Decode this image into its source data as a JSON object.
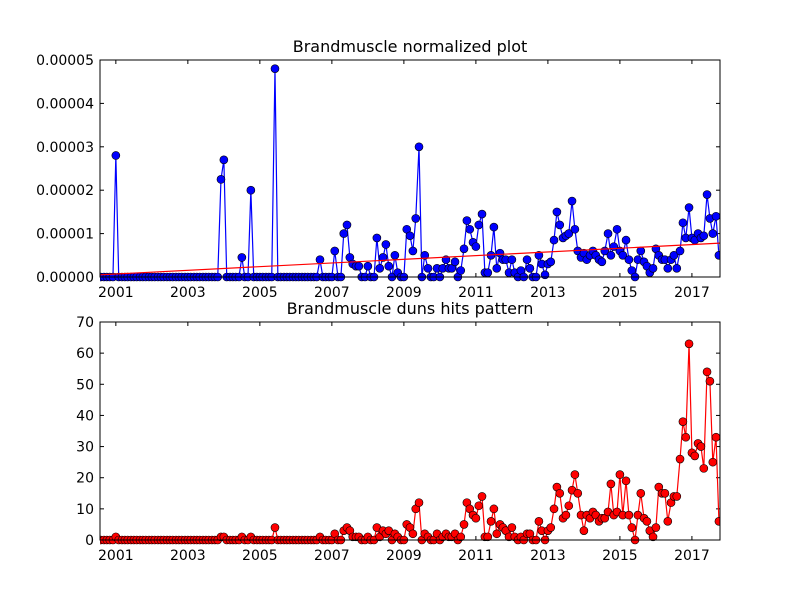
{
  "chart_data": [
    {
      "type": "line",
      "title": "Brandmuscle normalized plot",
      "xlim": [
        2000.56,
        2017.78
      ],
      "xticks": [
        2001,
        2003,
        2005,
        2007,
        2009,
        2011,
        2013,
        2015,
        2017
      ],
      "ylim": [
        0,
        5e-05
      ],
      "yticks": [
        {
          "value": 0,
          "label": "0.00000"
        },
        {
          "value": 1e-05,
          "label": "0.00001"
        },
        {
          "value": 2e-05,
          "label": "0.00002"
        },
        {
          "value": 3e-05,
          "label": "0.00003"
        },
        {
          "value": 4e-05,
          "label": "0.00004"
        },
        {
          "value": 5e-05,
          "label": "0.00005"
        }
      ],
      "x": [
        2000.58,
        2000.67,
        2000.75,
        2000.83,
        2000.92,
        2001.0,
        2001.08,
        2001.17,
        2001.25,
        2001.33,
        2001.42,
        2001.5,
        2001.58,
        2001.67,
        2001.75,
        2001.83,
        2001.92,
        2002.0,
        2002.08,
        2002.17,
        2002.25,
        2002.33,
        2002.42,
        2002.5,
        2002.58,
        2002.67,
        2002.75,
        2002.83,
        2002.92,
        2003.0,
        2003.08,
        2003.17,
        2003.25,
        2003.33,
        2003.42,
        2003.5,
        2003.58,
        2003.67,
        2003.75,
        2003.83,
        2003.92,
        2004.0,
        2004.08,
        2004.17,
        2004.25,
        2004.33,
        2004.42,
        2004.5,
        2004.58,
        2004.67,
        2004.75,
        2004.83,
        2004.92,
        2005.0,
        2005.08,
        2005.17,
        2005.25,
        2005.33,
        2005.42,
        2005.5,
        2005.58,
        2005.67,
        2005.75,
        2005.83,
        2005.92,
        2006.0,
        2006.08,
        2006.17,
        2006.25,
        2006.33,
        2006.42,
        2006.5,
        2006.58,
        2006.67,
        2006.75,
        2006.83,
        2006.92,
        2007.0,
        2007.08,
        2007.17,
        2007.25,
        2007.33,
        2007.42,
        2007.5,
        2007.58,
        2007.67,
        2007.75,
        2007.83,
        2007.92,
        2008.0,
        2008.08,
        2008.17,
        2008.25,
        2008.33,
        2008.42,
        2008.5,
        2008.58,
        2008.67,
        2008.75,
        2008.83,
        2008.92,
        2009.0,
        2009.08,
        2009.17,
        2009.25,
        2009.33,
        2009.42,
        2009.5,
        2009.58,
        2009.67,
        2009.75,
        2009.83,
        2009.92,
        2010.0,
        2010.08,
        2010.17,
        2010.25,
        2010.33,
        2010.42,
        2010.5,
        2010.58,
        2010.67,
        2010.75,
        2010.83,
        2010.92,
        2011.0,
        2011.08,
        2011.17,
        2011.25,
        2011.33,
        2011.42,
        2011.5,
        2011.58,
        2011.67,
        2011.75,
        2011.83,
        2011.92,
        2012.0,
        2012.08,
        2012.17,
        2012.25,
        2012.33,
        2012.42,
        2012.5,
        2012.58,
        2012.67,
        2012.75,
        2012.83,
        2012.92,
        2013.0,
        2013.08,
        2013.17,
        2013.25,
        2013.33,
        2013.42,
        2013.5,
        2013.58,
        2013.67,
        2013.75,
        2013.83,
        2013.92,
        2014.0,
        2014.08,
        2014.17,
        2014.25,
        2014.33,
        2014.42,
        2014.5,
        2014.58,
        2014.67,
        2014.75,
        2014.83,
        2014.92,
        2015.0,
        2015.08,
        2015.17,
        2015.25,
        2015.33,
        2015.42,
        2015.5,
        2015.58,
        2015.67,
        2015.75,
        2015.83,
        2015.92,
        2016.0,
        2016.08,
        2016.17,
        2016.25,
        2016.33,
        2016.42,
        2016.5,
        2016.58,
        2016.67,
        2016.75,
        2016.83,
        2016.92,
        2017.0,
        2017.08,
        2017.17,
        2017.25,
        2017.33,
        2017.42,
        2017.5,
        2017.58,
        2017.67,
        2017.75
      ],
      "series": [
        {
          "color": "#0000ff",
          "marker": "o",
          "values": [
            0,
            0,
            0,
            0,
            0,
            2.8e-05,
            0,
            0,
            0,
            0,
            0,
            0,
            0,
            0,
            0,
            0,
            0,
            0,
            0,
            0,
            0,
            0,
            0,
            0,
            0,
            0,
            0,
            0,
            0,
            0,
            0,
            0,
            0,
            0,
            0,
            0,
            0,
            0,
            0,
            0,
            2.25e-05,
            2.7e-05,
            0,
            0,
            0,
            0,
            0,
            4.5e-06,
            0,
            0,
            2e-05,
            0,
            0,
            0,
            0,
            0,
            0,
            0,
            4.8e-05,
            0,
            0,
            0,
            0,
            0,
            0,
            0,
            0,
            0,
            0,
            0,
            0,
            0,
            0,
            4e-06,
            0,
            0,
            0,
            0,
            6e-06,
            0,
            0,
            1e-05,
            1.2e-05,
            4.5e-06,
            3e-06,
            2.5e-06,
            2.5e-06,
            0,
            0,
            2.5e-06,
            0,
            0,
            9e-06,
            2e-06,
            4.5e-06,
            7.5e-06,
            2.5e-06,
            0,
            5e-06,
            1e-06,
            0,
            0,
            1.1e-05,
            9.5e-06,
            6e-06,
            1.35e-05,
            3e-05,
            0,
            5e-06,
            2e-06,
            0,
            0,
            2e-06,
            0,
            2e-06,
            4e-06,
            2e-06,
            2e-06,
            3.5e-06,
            0,
            1.5e-06,
            6.5e-06,
            1.3e-05,
            1.1e-05,
            8e-06,
            7e-06,
            1.2e-05,
            1.45e-05,
            1e-06,
            1e-06,
            5e-06,
            1.15e-05,
            2e-06,
            5.5e-06,
            4e-06,
            4e-06,
            1e-06,
            4e-06,
            1e-06,
            0,
            1.5e-06,
            0,
            4e-06,
            2e-06,
            0,
            0,
            5e-06,
            3e-06,
            5e-07,
            3e-06,
            3.5e-06,
            8.5e-06,
            1.5e-05,
            1.2e-05,
            9e-06,
            9.5e-06,
            1e-05,
            1.75e-05,
            1.1e-05,
            6e-06,
            4.5e-06,
            5.5e-06,
            4e-06,
            5e-06,
            6e-06,
            5e-06,
            4e-06,
            3.5e-06,
            6e-06,
            1e-05,
            5e-06,
            7e-06,
            1.1e-05,
            6e-06,
            5e-06,
            8.5e-06,
            4e-06,
            1.5e-06,
            0,
            4e-06,
            6e-06,
            3.5e-06,
            2.5e-06,
            1e-06,
            2e-06,
            6.5e-06,
            5e-06,
            4e-06,
            4e-06,
            2e-06,
            4e-06,
            5e-06,
            2e-06,
            6e-06,
            1.25e-05,
            9e-06,
            1.6e-05,
            9e-06,
            8.5e-06,
            1e-05,
            9e-06,
            9.5e-06,
            1.9e-05,
            1.35e-05,
            1e-05,
            1.4e-05,
            5e-06
          ]
        },
        {
          "color": "#ff0000",
          "marker": "none",
          "x": [
            2000.56,
            2017.78
          ],
          "values": [
            5e-07,
            7.8e-06
          ]
        }
      ]
    },
    {
      "type": "line",
      "title": "Brandmuscle duns hits pattern",
      "xlim": [
        2000.56,
        2017.78
      ],
      "xticks": [
        2001,
        2003,
        2005,
        2007,
        2009,
        2011,
        2013,
        2015,
        2017
      ],
      "ylim": [
        0,
        70
      ],
      "yticks": [
        0,
        10,
        20,
        30,
        40,
        50,
        60,
        70
      ],
      "x": [
        2000.58,
        2000.67,
        2000.75,
        2000.83,
        2000.92,
        2001.0,
        2001.08,
        2001.17,
        2001.25,
        2001.33,
        2001.42,
        2001.5,
        2001.58,
        2001.67,
        2001.75,
        2001.83,
        2001.92,
        2002.0,
        2002.08,
        2002.17,
        2002.25,
        2002.33,
        2002.42,
        2002.5,
        2002.58,
        2002.67,
        2002.75,
        2002.83,
        2002.92,
        2003.0,
        2003.08,
        2003.17,
        2003.25,
        2003.33,
        2003.42,
        2003.5,
        2003.58,
        2003.67,
        2003.75,
        2003.83,
        2003.92,
        2004.0,
        2004.08,
        2004.17,
        2004.25,
        2004.33,
        2004.42,
        2004.5,
        2004.58,
        2004.67,
        2004.75,
        2004.83,
        2004.92,
        2005.0,
        2005.08,
        2005.17,
        2005.25,
        2005.33,
        2005.42,
        2005.5,
        2005.58,
        2005.67,
        2005.75,
        2005.83,
        2005.92,
        2006.0,
        2006.08,
        2006.17,
        2006.25,
        2006.33,
        2006.42,
        2006.5,
        2006.58,
        2006.67,
        2006.75,
        2006.83,
        2006.92,
        2007.0,
        2007.08,
        2007.17,
        2007.25,
        2007.33,
        2007.42,
        2007.5,
        2007.58,
        2007.67,
        2007.75,
        2007.83,
        2007.92,
        2008.0,
        2008.08,
        2008.17,
        2008.25,
        2008.33,
        2008.42,
        2008.5,
        2008.58,
        2008.67,
        2008.75,
        2008.83,
        2008.92,
        2009.0,
        2009.08,
        2009.17,
        2009.25,
        2009.33,
        2009.42,
        2009.5,
        2009.58,
        2009.67,
        2009.75,
        2009.83,
        2009.92,
        2010.0,
        2010.08,
        2010.17,
        2010.25,
        2010.33,
        2010.42,
        2010.5,
        2010.58,
        2010.67,
        2010.75,
        2010.83,
        2010.92,
        2011.0,
        2011.08,
        2011.17,
        2011.25,
        2011.33,
        2011.42,
        2011.5,
        2011.58,
        2011.67,
        2011.75,
        2011.83,
        2011.92,
        2012.0,
        2012.08,
        2012.17,
        2012.25,
        2012.33,
        2012.42,
        2012.5,
        2012.58,
        2012.67,
        2012.75,
        2012.83,
        2012.92,
        2013.0,
        2013.08,
        2013.17,
        2013.25,
        2013.33,
        2013.42,
        2013.5,
        2013.58,
        2013.67,
        2013.75,
        2013.83,
        2013.92,
        2014.0,
        2014.08,
        2014.17,
        2014.25,
        2014.33,
        2014.42,
        2014.5,
        2014.58,
        2014.67,
        2014.75,
        2014.83,
        2014.92,
        2015.0,
        2015.08,
        2015.17,
        2015.25,
        2015.33,
        2015.42,
        2015.5,
        2015.58,
        2015.67,
        2015.75,
        2015.83,
        2015.92,
        2016.0,
        2016.08,
        2016.17,
        2016.25,
        2016.33,
        2016.42,
        2016.5,
        2016.58,
        2016.67,
        2016.75,
        2016.83,
        2016.92,
        2017.0,
        2017.08,
        2017.17,
        2017.25,
        2017.33,
        2017.42,
        2017.5,
        2017.58,
        2017.67,
        2017.75
      ],
      "series": [
        {
          "color": "#ff0000",
          "marker": "o",
          "values": [
            0,
            0,
            0,
            0,
            0,
            1,
            0,
            0,
            0,
            0,
            0,
            0,
            0,
            0,
            0,
            0,
            0,
            0,
            0,
            0,
            0,
            0,
            0,
            0,
            0,
            0,
            0,
            0,
            0,
            0,
            0,
            0,
            0,
            0,
            0,
            0,
            0,
            0,
            0,
            0,
            1,
            1,
            0,
            0,
            0,
            0,
            0,
            1,
            0,
            0,
            1,
            0,
            0,
            0,
            0,
            0,
            0,
            0,
            4,
            0,
            0,
            0,
            0,
            0,
            0,
            0,
            0,
            0,
            0,
            0,
            0,
            0,
            0,
            1,
            0,
            0,
            0,
            0,
            2,
            0,
            0,
            3,
            4,
            3,
            1,
            1,
            1,
            0,
            0,
            1,
            0,
            0,
            4,
            1,
            3,
            2,
            3,
            0,
            2,
            1,
            0,
            0,
            5,
            4,
            2,
            10,
            12,
            0,
            2,
            1,
            0,
            0,
            2,
            0,
            1,
            2,
            1,
            1,
            2,
            0,
            1,
            5,
            12,
            10,
            8,
            7,
            11,
            14,
            1,
            1,
            6,
            10,
            2,
            5,
            4,
            3,
            1,
            4,
            1,
            0,
            1,
            0,
            2,
            2,
            0,
            0,
            6,
            3,
            0,
            3,
            4,
            10,
            17,
            15,
            7,
            8,
            11,
            16,
            21,
            15,
            8,
            3,
            8,
            7,
            9,
            8,
            6,
            7,
            7,
            9,
            18,
            8,
            9,
            21,
            8,
            19,
            8,
            4,
            0,
            8,
            15,
            7,
            6,
            3,
            1,
            4,
            17,
            15,
            15,
            6,
            12,
            14,
            14,
            26,
            38,
            33,
            63,
            28,
            27,
            31,
            30,
            23,
            54,
            51,
            25,
            33,
            6
          ]
        }
      ]
    }
  ]
}
